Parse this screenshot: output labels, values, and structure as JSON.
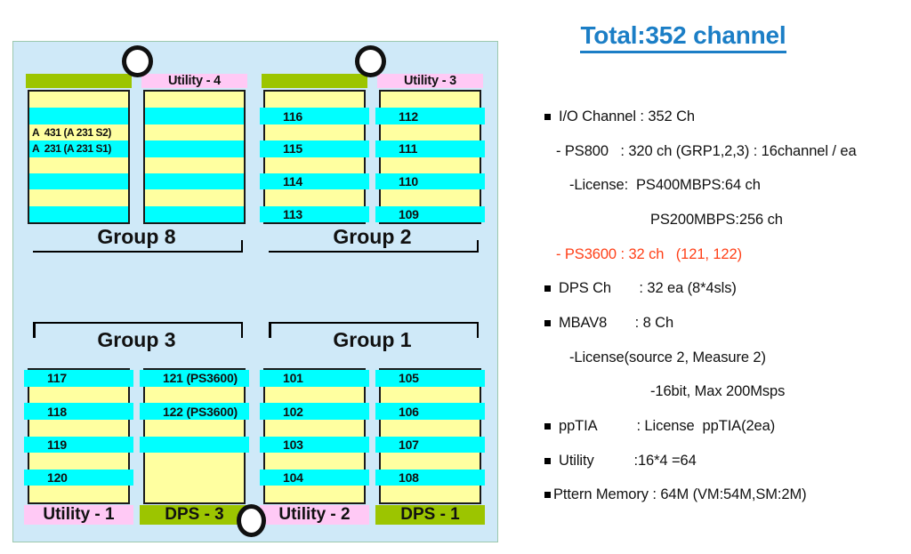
{
  "title": {
    "text": "Total:352 channel"
  },
  "colors": {
    "title_blue": "#1B7EC6",
    "highlight_red": "#FF4018",
    "panel_bg": "#CFE9F8",
    "slot_cyan": "#00FFFF",
    "slot_yellow": "#FFFFA0",
    "cap_green": "#9CC500",
    "cap_pink": "#FFC9F5"
  },
  "diagram": {
    "groups": [
      {
        "id": "g8",
        "label": "Group 8",
        "label_pos": "below",
        "columns": [
          {
            "header": {
              "text": "",
              "color": "green"
            },
            "rows": [
              {
                "color": "yellow"
              },
              {
                "color": "cyan"
              },
              {
                "color": "yellow",
                "text": "A  431 (A 231 S2)"
              },
              {
                "color": "cyan",
                "text": "A  231 (A 231 S1)"
              },
              {
                "color": "yellow"
              },
              {
                "color": "cyan"
              },
              {
                "color": "yellow"
              },
              {
                "color": "cyan"
              }
            ]
          },
          {
            "header": {
              "text": "Utility - 4",
              "color": "pink"
            },
            "rows": [
              {
                "color": "yellow"
              },
              {
                "color": "cyan"
              },
              {
                "color": "yellow"
              },
              {
                "color": "cyan"
              },
              {
                "color": "yellow"
              },
              {
                "color": "cyan"
              },
              {
                "color": "yellow"
              },
              {
                "color": "cyan"
              }
            ]
          }
        ]
      },
      {
        "id": "g2",
        "label": "Group 2",
        "label_pos": "below",
        "columns": [
          {
            "header": {
              "text": "",
              "color": "green"
            },
            "rows": [
              {
                "color": "yellow"
              },
              {
                "color": "cyan",
                "text": "116",
                "bleed": true
              },
              {
                "color": "yellow"
              },
              {
                "color": "cyan",
                "text": "115",
                "bleed": true
              },
              {
                "color": "yellow"
              },
              {
                "color": "cyan",
                "text": "114",
                "bleed": true
              },
              {
                "color": "yellow"
              },
              {
                "color": "cyan",
                "text": "113",
                "bleed": true
              }
            ]
          },
          {
            "header": {
              "text": "Utility - 3",
              "color": "pink"
            },
            "rows": [
              {
                "color": "yellow"
              },
              {
                "color": "cyan",
                "text": "112",
                "bleed": true
              },
              {
                "color": "yellow"
              },
              {
                "color": "cyan",
                "text": "111",
                "bleed": true
              },
              {
                "color": "yellow"
              },
              {
                "color": "cyan",
                "text": "110",
                "bleed": true
              },
              {
                "color": "yellow"
              },
              {
                "color": "cyan",
                "text": "109",
                "bleed": true
              }
            ]
          }
        ]
      },
      {
        "id": "g3",
        "label": "Group 3",
        "label_pos": "above",
        "columns": [
          {
            "footer": {
              "text": "Utility - 1",
              "color": "pink"
            },
            "rows": [
              {
                "color": "cyan",
                "text": "117",
                "bleed": true
              },
              {
                "color": "yellow"
              },
              {
                "color": "cyan",
                "text": "118",
                "bleed": true
              },
              {
                "color": "yellow"
              },
              {
                "color": "cyan",
                "text": "119",
                "bleed": true
              },
              {
                "color": "yellow"
              },
              {
                "color": "cyan",
                "text": "120",
                "bleed": true
              },
              {
                "color": "yellow"
              }
            ]
          },
          {
            "footer": {
              "text": "DPS - 3",
              "color": "green"
            },
            "rows": [
              {
                "color": "cyan",
                "text": "121 (PS3600)",
                "bleed": true
              },
              {
                "color": "yellow"
              },
              {
                "color": "cyan",
                "text": "122 (PS3600)",
                "bleed": true
              },
              {
                "color": "yellow"
              },
              {
                "color": "cyan",
                "bleed": true
              },
              {
                "color": "yellow"
              },
              {
                "color": "yellow"
              },
              {
                "color": "yellow"
              }
            ]
          }
        ]
      },
      {
        "id": "g1",
        "label": "Group 1",
        "label_pos": "above",
        "columns": [
          {
            "footer": {
              "text": "Utility - 2",
              "color": "pink"
            },
            "rows": [
              {
                "color": "cyan",
                "text": "101",
                "bleed": true
              },
              {
                "color": "yellow"
              },
              {
                "color": "cyan",
                "text": "102",
                "bleed": true
              },
              {
                "color": "yellow"
              },
              {
                "color": "cyan",
                "text": "103",
                "bleed": true
              },
              {
                "color": "yellow"
              },
              {
                "color": "cyan",
                "text": "104",
                "bleed": true
              },
              {
                "color": "yellow"
              }
            ]
          },
          {
            "footer": {
              "text": "DPS - 1",
              "color": "green"
            },
            "rows": [
              {
                "color": "cyan",
                "text": "105",
                "bleed": true
              },
              {
                "color": "yellow"
              },
              {
                "color": "cyan",
                "text": "106",
                "bleed": true
              },
              {
                "color": "yellow"
              },
              {
                "color": "cyan",
                "text": "107",
                "bleed": true
              },
              {
                "color": "yellow"
              },
              {
                "color": "cyan",
                "text": "108",
                "bleed": true
              },
              {
                "color": "yellow"
              }
            ]
          }
        ]
      }
    ]
  },
  "specs": [
    {
      "level": 0,
      "bullet": true,
      "text": "I/O Channel : 352 Ch"
    },
    {
      "level": 1,
      "bullet": false,
      "text": "- PS800   : 320 ch (GRP1,2,3) : 16channel / ea"
    },
    {
      "level": 2,
      "bullet": false,
      "text": "-License:  PS400MBPS:64 ch"
    },
    {
      "level": 3,
      "bullet": false,
      "text": "PS200MBPS:256 ch"
    },
    {
      "level": 1,
      "bullet": false,
      "text": "- PS3600 : 32 ch   (121, 122)",
      "color": "red"
    },
    {
      "level": 0,
      "bullet": true,
      "text": "DPS Ch       : 32 ea (8*4sls)"
    },
    {
      "level": 0,
      "bullet": true,
      "text": "MBAV8       : 8 Ch"
    },
    {
      "level": 2,
      "bullet": false,
      "text": "-License(source 2, Measure 2)"
    },
    {
      "level": 3,
      "bullet": false,
      "text": "-16bit, Max 200Msps"
    },
    {
      "level": 0,
      "bullet": true,
      "text": "ppTIA          : License  ppTIA(2ea)"
    },
    {
      "level": 0,
      "bullet": true,
      "text": "Utility          :16*4 =64"
    },
    {
      "level": 0,
      "bullet": true,
      "tight": true,
      "text": "Pttern Memory : 64M (VM:54M,SM:2M)"
    }
  ]
}
